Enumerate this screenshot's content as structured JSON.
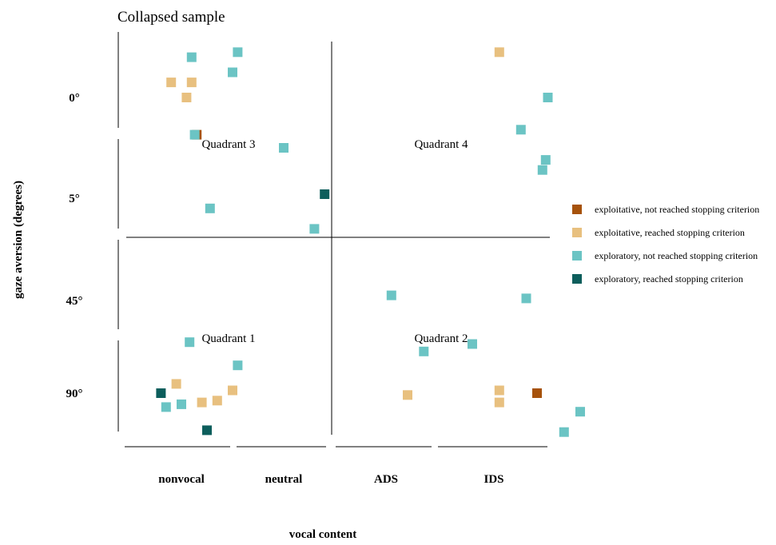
{
  "chart_data": {
    "type": "scatter",
    "title": "Collapsed sample",
    "xlabel": "vocal content",
    "ylabel": "gaze aversion (degrees)",
    "x_categories": [
      "nonvocal",
      "neutral",
      "ADS",
      "IDS"
    ],
    "y_categories": [
      "0°",
      "5°",
      "45°",
      "90°"
    ],
    "quadrants": [
      "Quadrant 3",
      "Quadrant 4",
      "Quadrant 1",
      "Quadrant 2"
    ],
    "legend_position": "right",
    "series": [
      {
        "name": "exploitative, not reached stopping criterion",
        "color": "#a6520b",
        "points": [
          {
            "x": 0.15,
            "y": 0.37
          },
          {
            "x": 3.4,
            "y": 3.0
          }
        ]
      },
      {
        "name": "exploitative, reached stopping criterion",
        "color": "#e8c07f",
        "points": [
          {
            "x": -0.1,
            "y": -0.15
          },
          {
            "x": 0.05,
            "y": 0.0
          },
          {
            "x": 0.1,
            "y": -0.15
          },
          {
            "x": -0.05,
            "y": 2.9
          },
          {
            "x": 0.2,
            "y": 3.1
          },
          {
            "x": 0.35,
            "y": 3.08
          },
          {
            "x": 0.5,
            "y": 2.97
          },
          {
            "x": 2.2,
            "y": 3.02
          },
          {
            "x": 3.05,
            "y": 2.97
          },
          {
            "x": 3.05,
            "y": 3.1
          },
          {
            "x": 3.05,
            "y": -0.45
          }
        ]
      },
      {
        "name": "exploratory, not reached stopping criterion",
        "color": "#6bc4c4",
        "points": [
          {
            "x": 0.1,
            "y": -0.4
          },
          {
            "x": 0.55,
            "y": -0.45
          },
          {
            "x": 0.5,
            "y": -0.25
          },
          {
            "x": 0.13,
            "y": 0.37
          },
          {
            "x": 1.0,
            "y": 0.5
          },
          {
            "x": 0.28,
            "y": 1.1
          },
          {
            "x": 1.3,
            "y": 1.3
          },
          {
            "x": 3.5,
            "y": 0.0
          },
          {
            "x": 3.25,
            "y": 0.32
          },
          {
            "x": 3.48,
            "y": 0.62
          },
          {
            "x": 3.45,
            "y": 0.72
          },
          {
            "x": 2.05,
            "y": 1.95
          },
          {
            "x": 3.3,
            "y": 1.98
          },
          {
            "x": 0.08,
            "y": 2.45
          },
          {
            "x": 0.55,
            "y": 2.7
          },
          {
            "x": 2.35,
            "y": 2.55
          },
          {
            "x": 2.8,
            "y": 2.47
          },
          {
            "x": -0.15,
            "y": 3.15
          },
          {
            "x": 0.0,
            "y": 3.12
          },
          {
            "x": 3.65,
            "y": 3.42
          },
          {
            "x": 3.8,
            "y": 3.2
          }
        ]
      },
      {
        "name": "exploratory, reached stopping criterion",
        "color": "#0d5e5c",
        "points": [
          {
            "x": 1.4,
            "y": 0.96
          },
          {
            "x": -0.2,
            "y": 3.0
          },
          {
            "x": 0.25,
            "y": 3.4
          }
        ]
      }
    ]
  }
}
